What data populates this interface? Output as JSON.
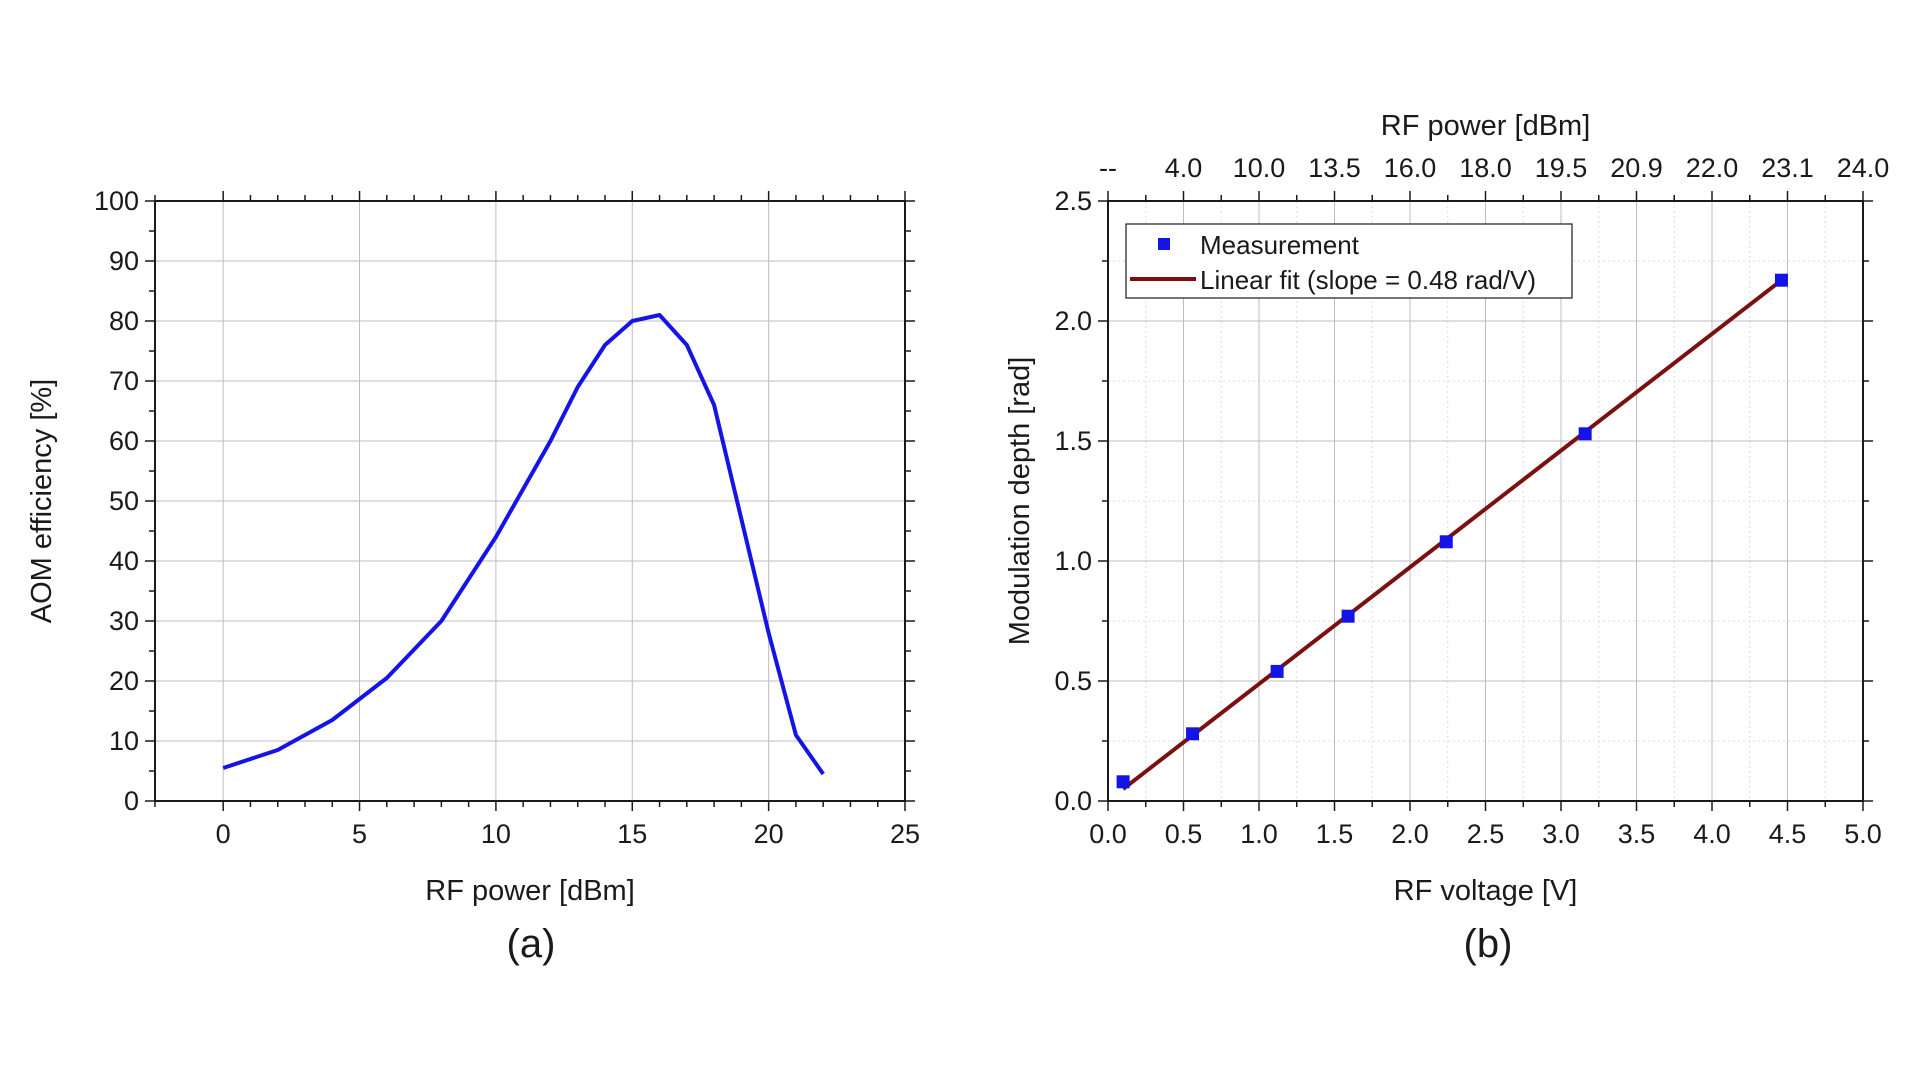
{
  "chart_data": [
    {
      "type": "line",
      "panel_label": "(a)",
      "xlabel": "RF power [dBm]",
      "ylabel": "AOM efficiency [%]",
      "xlim": [
        -2.5,
        25
      ],
      "ylim": [
        0,
        100
      ],
      "x_ticks": [
        0,
        5,
        10,
        15,
        20,
        25
      ],
      "y_ticks": [
        0,
        10,
        20,
        30,
        40,
        50,
        60,
        70,
        80,
        90,
        100
      ],
      "grid": true,
      "series": [
        {
          "color": "#1414e6",
          "x": [
            0,
            2,
            4,
            6,
            8,
            10,
            12,
            13,
            14,
            15,
            16,
            17,
            18,
            19,
            20,
            21,
            22
          ],
          "y": [
            5.5,
            8.5,
            13.5,
            20.5,
            30,
            44,
            60,
            69,
            76,
            80,
            81,
            76,
            66,
            47,
            28,
            11,
            4.5
          ]
        }
      ]
    },
    {
      "type": "scatter",
      "panel_label": "(b)",
      "xlabel": "RF voltage [V]",
      "ylabel": "Modulation depth [rad]",
      "top_xlabel": "RF power [dBm]",
      "xlim": [
        0,
        5
      ],
      "ylim": [
        0,
        2.5
      ],
      "x_ticks": [
        "0.0",
        "0.5",
        "1.0",
        "1.5",
        "2.0",
        "2.5",
        "3.0",
        "3.5",
        "4.0",
        "4.5",
        "5.0"
      ],
      "y_ticks": [
        "0.0",
        "0.5",
        "1.0",
        "1.5",
        "2.0",
        "2.5"
      ],
      "top_ticks": [
        {
          "v": 0.0,
          "label": "--"
        },
        {
          "v": 0.5,
          "label": "4.0"
        },
        {
          "v": 1.0,
          "label": "10.0"
        },
        {
          "v": 1.5,
          "label": "13.5"
        },
        {
          "v": 2.0,
          "label": "16.0"
        },
        {
          "v": 2.5,
          "label": "18.0"
        },
        {
          "v": 3.0,
          "label": "19.5"
        },
        {
          "v": 3.5,
          "label": "20.9"
        },
        {
          "v": 4.0,
          "label": "22.0"
        },
        {
          "v": 4.5,
          "label": "23.1"
        },
        {
          "v": 5.0,
          "label": "24.0"
        }
      ],
      "grid": true,
      "legend_position": "top-left",
      "series": [
        {
          "name": "Measurement",
          "kind": "markers",
          "color": "#1414e6",
          "x": [
            0.1,
            0.56,
            1.12,
            1.59,
            2.24,
            3.16,
            4.46
          ],
          "y": [
            0.08,
            0.28,
            0.54,
            0.77,
            1.08,
            1.53,
            2.17
          ]
        },
        {
          "name": "Linear fit (slope = 0.48 rad/V)",
          "kind": "line",
          "color": "#7a1010",
          "x": [
            0.1,
            4.46
          ],
          "y": [
            0.05,
            2.17
          ]
        }
      ]
    }
  ]
}
